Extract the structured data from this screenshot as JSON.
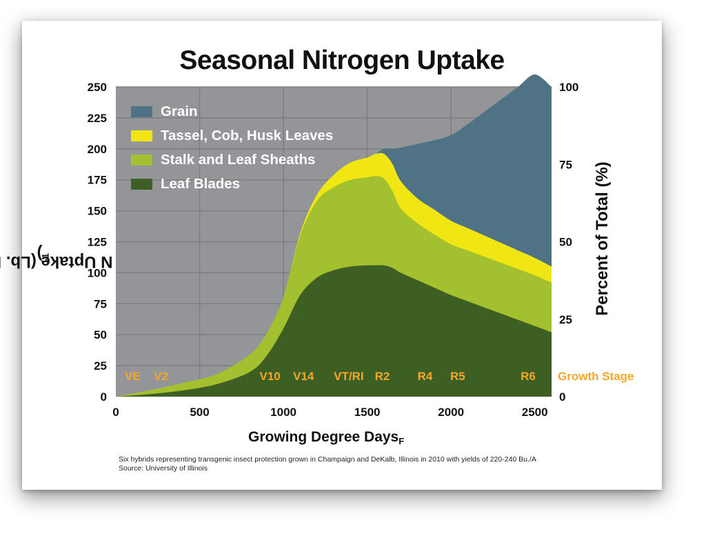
{
  "title": "Seasonal Nitrogen Uptake",
  "footnote": [
    "Six hybrids representing transgenic insect protection grown in Champaign and DeKalb, Illinois in 2010 with yields of 220-240 Bu./A",
    "Source: University of Illinois"
  ],
  "colors": {
    "plot_background": "#939598",
    "grid": "#7c7e81",
    "grain": "#4f7284",
    "tassel": "#f0e614",
    "stalk": "#a3c02e",
    "leaf": "#3e5f24",
    "growth_stage": "#f6a726"
  },
  "chart_data": {
    "type": "area",
    "stacked": true,
    "title": "Seasonal Nitrogen Uptake",
    "xlabel": "Growing Degree Days",
    "xlabel_sub": "F",
    "ylabel": "N Uptake (Lb. N ac",
    "ylabel_sup": "-1",
    "ylabel_end": ")",
    "y2label": "Percent of Total (%)",
    "xlim": [
      0,
      2600
    ],
    "ylim": [
      0,
      250
    ],
    "y2lim": [
      0,
      100
    ],
    "x_ticks": [
      "0",
      "500",
      "1000",
      "1500",
      "2000",
      "2500"
    ],
    "y_ticks": [
      "0",
      "25",
      "50",
      "75",
      "100",
      "125",
      "150",
      "175",
      "200",
      "225",
      "250"
    ],
    "y2_ticks": [
      "0",
      "25",
      "50",
      "75",
      "100"
    ],
    "x": [
      0,
      200,
      400,
      600,
      800,
      900,
      1000,
      1100,
      1200,
      1300,
      1400,
      1500,
      1550,
      1600,
      1650,
      1700,
      1800,
      1900,
      2000,
      2100,
      2200,
      2300,
      2400,
      2500,
      2600
    ],
    "series": [
      {
        "name": "Leaf Blades",
        "values": [
          0,
          2,
          5,
          10,
          20,
          33,
          55,
          82,
          96,
          102,
          105,
          106,
          106,
          106,
          104,
          100,
          94,
          88,
          82,
          77,
          72,
          67,
          62,
          57,
          52
        ]
      },
      {
        "name": "Stalk and Leaf Sheaths",
        "values": [
          0,
          3,
          6,
          8,
          14,
          18,
          25,
          48,
          62,
          67,
          70,
          71,
          72,
          70,
          62,
          52,
          46,
          43,
          41,
          41,
          41,
          41,
          41,
          41,
          40
        ]
      },
      {
        "name": "Tassel, Cob, Husk Leaves",
        "values": [
          0,
          0,
          0,
          0,
          0,
          0,
          0,
          2,
          5,
          10,
          14,
          16,
          18,
          20,
          22,
          22,
          20,
          20,
          19,
          18,
          17,
          16,
          15,
          14,
          13
        ]
      },
      {
        "name": "Grain",
        "values": [
          0,
          0,
          0,
          0,
          0,
          0,
          0,
          0,
          0,
          0,
          0,
          0,
          0,
          4,
          12,
          27,
          44,
          56,
          69,
          84,
          100,
          116,
          132,
          148,
          145
        ]
      }
    ],
    "growth_stage_label": "Growth Stage",
    "growth_stages": [
      {
        "label": "VE",
        "x": 100
      },
      {
        "label": "V2",
        "x": 270
      },
      {
        "label": "V10",
        "x": 920
      },
      {
        "label": "V14",
        "x": 1120
      },
      {
        "label": "VT/RI",
        "x": 1390
      },
      {
        "label": "R2",
        "x": 1590
      },
      {
        "label": "R4",
        "x": 1845
      },
      {
        "label": "R5",
        "x": 2040
      },
      {
        "label": "R6",
        "x": 2460
      }
    ],
    "legend_position": "top-left",
    "grid": true
  }
}
